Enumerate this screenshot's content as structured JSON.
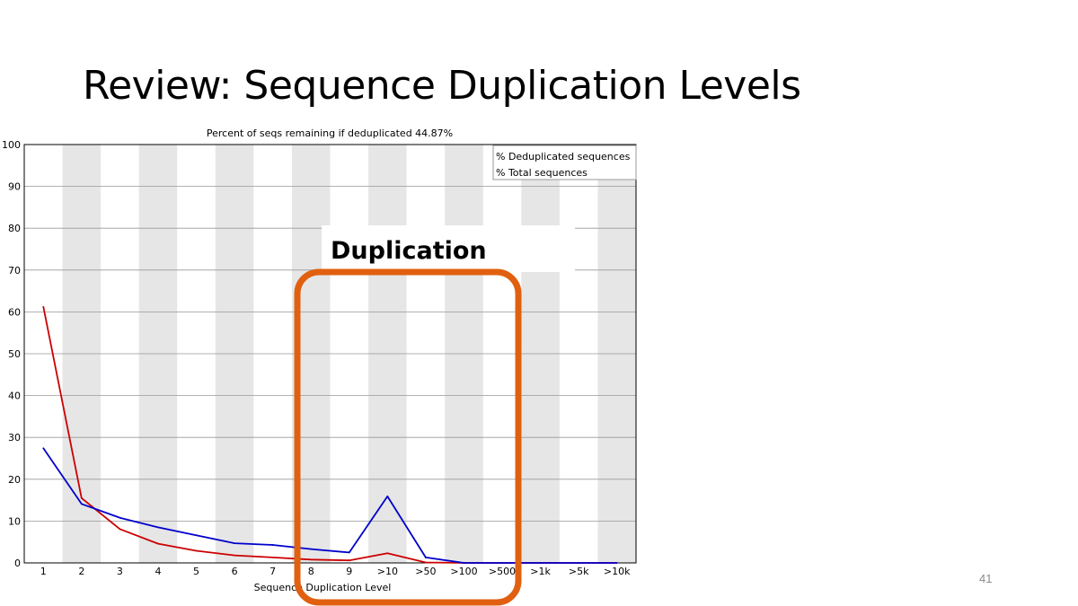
{
  "slide": {
    "title": "Review: Sequence Duplication Levels",
    "page_number": "41",
    "annotation_label": "Duplication"
  },
  "colors": {
    "deduplicated": "#cc0000",
    "total": "#0000cc",
    "band": "#e6e6e6",
    "grid": "#999999",
    "highlight_box": "#e06010"
  },
  "chart_data": {
    "type": "line",
    "title": "Percent of seqs remaining if deduplicated 44.87%",
    "xlabel": "Sequence Duplication Level",
    "ylabel": "",
    "categories": [
      "1",
      "2",
      "3",
      "4",
      "5",
      "6",
      "7",
      "8",
      "9",
      ">10",
      ">50",
      ">100",
      ">500",
      ">1k",
      ">5k",
      ">10k"
    ],
    "ylim": [
      0,
      100
    ],
    "yticks": [
      0,
      10,
      20,
      30,
      40,
      50,
      60,
      70,
      80,
      90,
      100
    ],
    "grid": true,
    "legend_position": "top-right",
    "series": [
      {
        "name": "% Deduplicated sequences",
        "color": "#cc0000",
        "values": [
          61.2,
          15.5,
          8.1,
          4.6,
          2.9,
          1.8,
          1.3,
          0.8,
          0.6,
          2.3,
          0.1,
          0.0,
          0.0,
          0.0,
          0.0,
          0.0
        ]
      },
      {
        "name": "% Total sequences",
        "color": "#0000cc",
        "values": [
          27.4,
          14.1,
          10.8,
          8.5,
          6.6,
          4.7,
          4.3,
          3.3,
          2.5,
          15.9,
          1.3,
          0.0,
          0.0,
          0.0,
          0.0,
          0.0
        ]
      }
    ],
    "highlight": {
      "label": "Duplication",
      "from": "8",
      "to": ">500"
    }
  }
}
